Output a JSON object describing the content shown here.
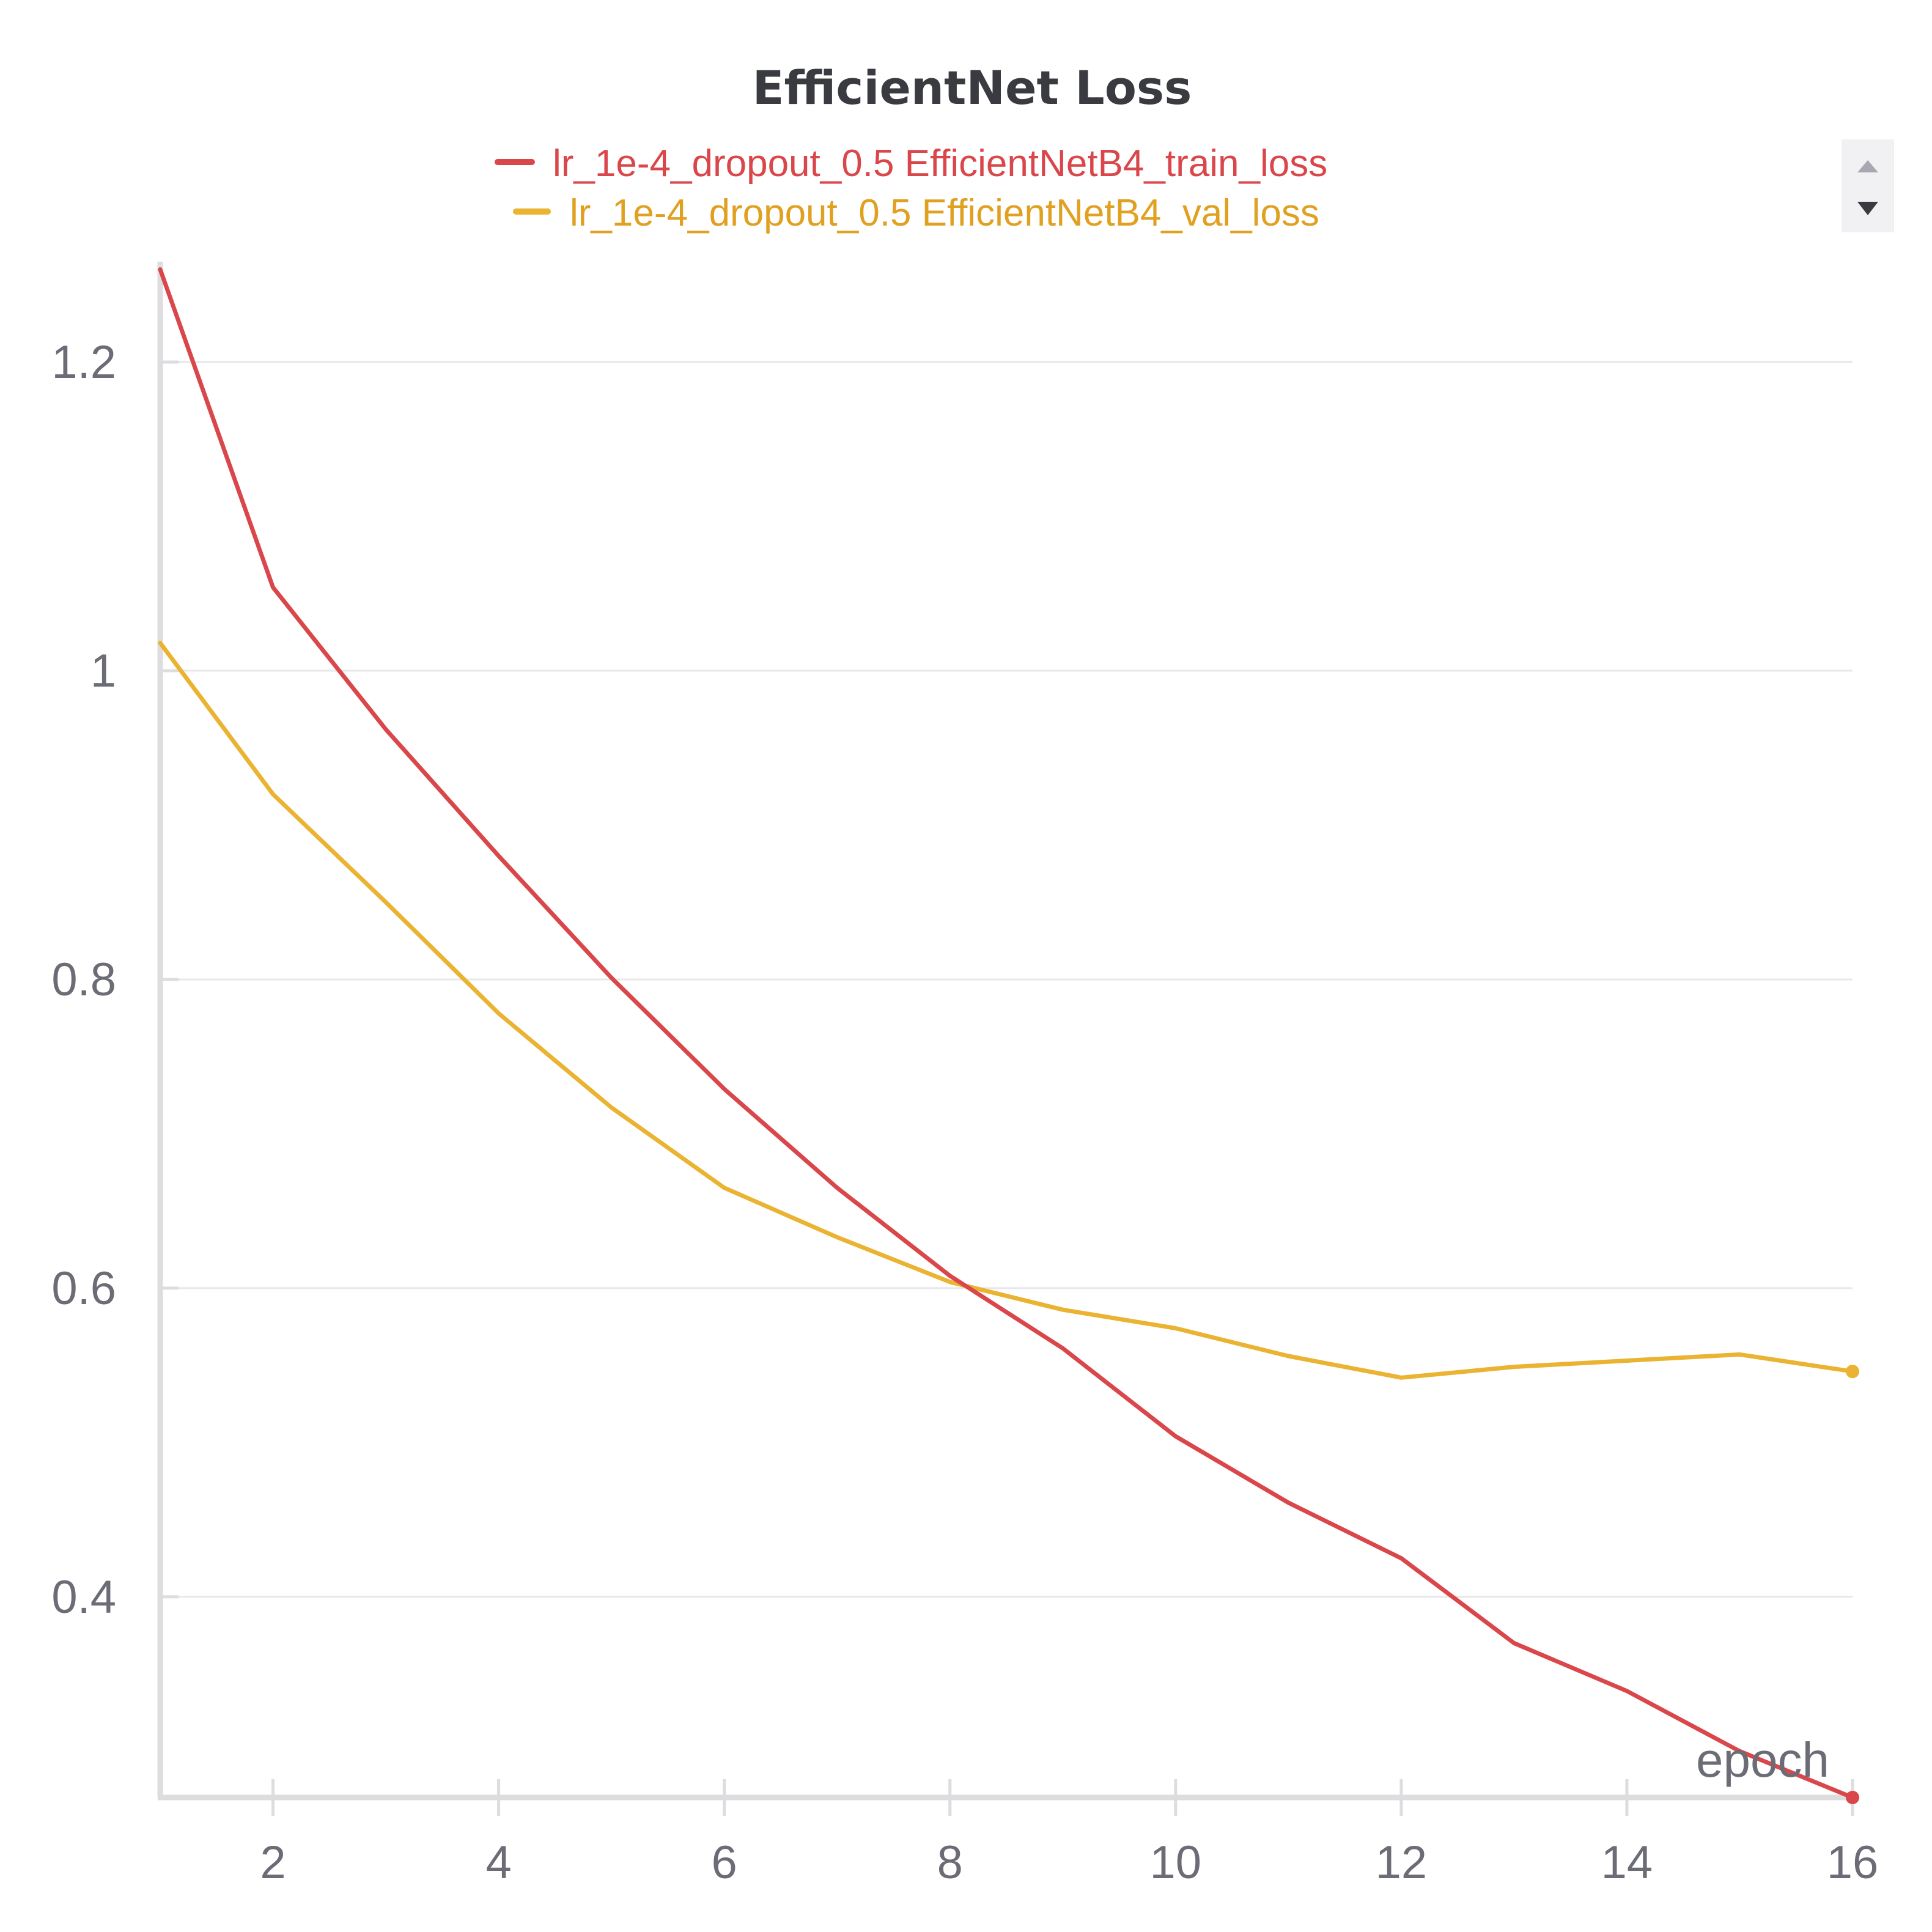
{
  "chart_data": {
    "type": "line",
    "title": "EfficientNet Loss",
    "xlabel": "epoch",
    "ylabel": "",
    "x": [
      1,
      2,
      3,
      4,
      5,
      6,
      7,
      8,
      9,
      10,
      11,
      12,
      13,
      14,
      15,
      16
    ],
    "xlim": [
      1,
      16
    ],
    "ylim": [
      0.27,
      1.265
    ],
    "xticks": [
      2,
      4,
      6,
      8,
      10,
      12,
      14,
      16
    ],
    "yticks": [
      0.4,
      0.6,
      0.8,
      1.0,
      1.2
    ],
    "ytick_labels": [
      "0.4",
      "0.6",
      "0.8",
      "1",
      "1.2"
    ],
    "xtick_labels": [
      "2",
      "4",
      "6",
      "8",
      "10",
      "12",
      "14",
      "16"
    ],
    "grid": true,
    "legend_position": "top-center",
    "series": [
      {
        "name": "lr_1e-4_dropout_0.5 EfficientNetB4_train_loss",
        "color": "#d9474b",
        "values": [
          1.26,
          1.054,
          0.962,
          0.88,
          0.801,
          0.729,
          0.665,
          0.608,
          0.561,
          0.504,
          0.461,
          0.425,
          0.37,
          0.339,
          0.3,
          0.27
        ]
      },
      {
        "name": "lr_1e-4_dropout_0.5 EfficientNetB4_val_loss",
        "color": "#eab331",
        "legend_text_color": "#e0a020",
        "values": [
          1.018,
          0.92,
          0.85,
          0.778,
          0.717,
          0.665,
          0.633,
          0.604,
          0.586,
          0.574,
          0.556,
          0.542,
          0.549,
          0.553,
          0.557,
          0.546
        ]
      }
    ]
  }
}
